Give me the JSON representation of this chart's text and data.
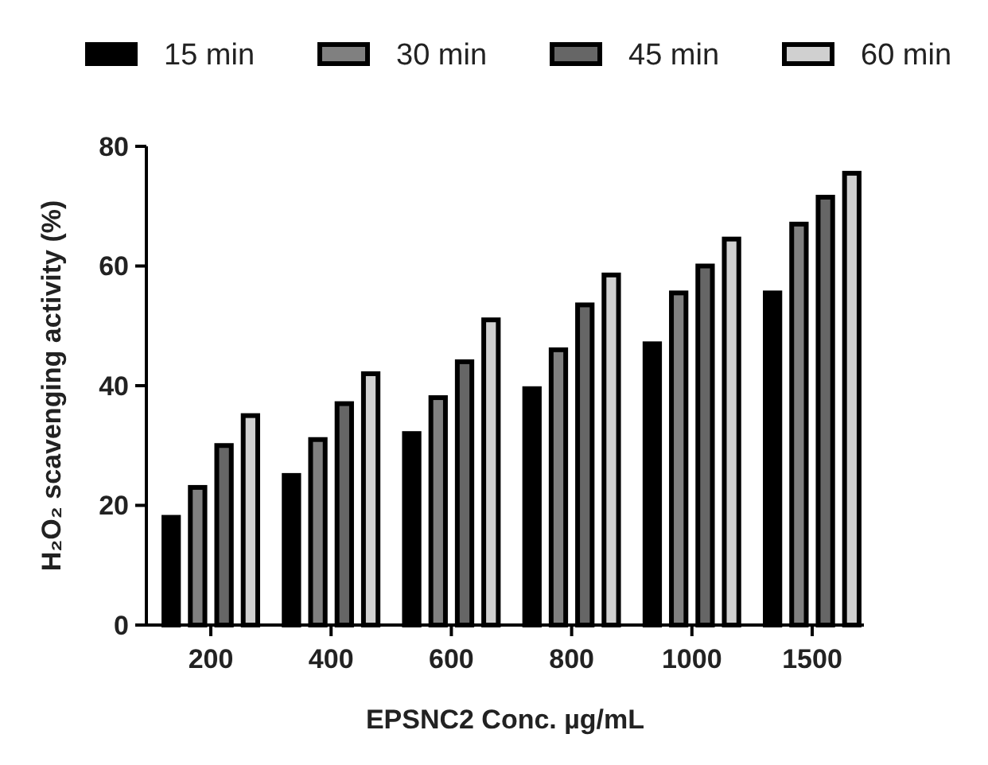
{
  "chart_data": {
    "type": "bar",
    "xlabel": "EPSNC2 Conc. µg/mL",
    "ylabel": "H₂O₂ scavenging activity (%)",
    "categories": [
      "200",
      "400",
      "600",
      "800",
      "1000",
      "1500"
    ],
    "series": [
      {
        "name": "15 min",
        "color": "#000000",
        "values": [
          18,
          25,
          32,
          39.5,
          47,
          55.5
        ]
      },
      {
        "name": "30 min",
        "color": "#808080",
        "values": [
          23,
          31,
          38,
          46,
          55.5,
          67
        ]
      },
      {
        "name": "45 min",
        "color": "#666666",
        "values": [
          30,
          37,
          44,
          53.5,
          60,
          71.5
        ]
      },
      {
        "name": "60 min",
        "color": "#d0d0d0",
        "values": [
          35,
          42,
          51,
          58.5,
          64.5,
          75.5
        ]
      }
    ],
    "ylim": [
      0,
      80
    ],
    "yticks": [
      0,
      20,
      40,
      60,
      80
    ],
    "grid": false,
    "legend": "top"
  }
}
